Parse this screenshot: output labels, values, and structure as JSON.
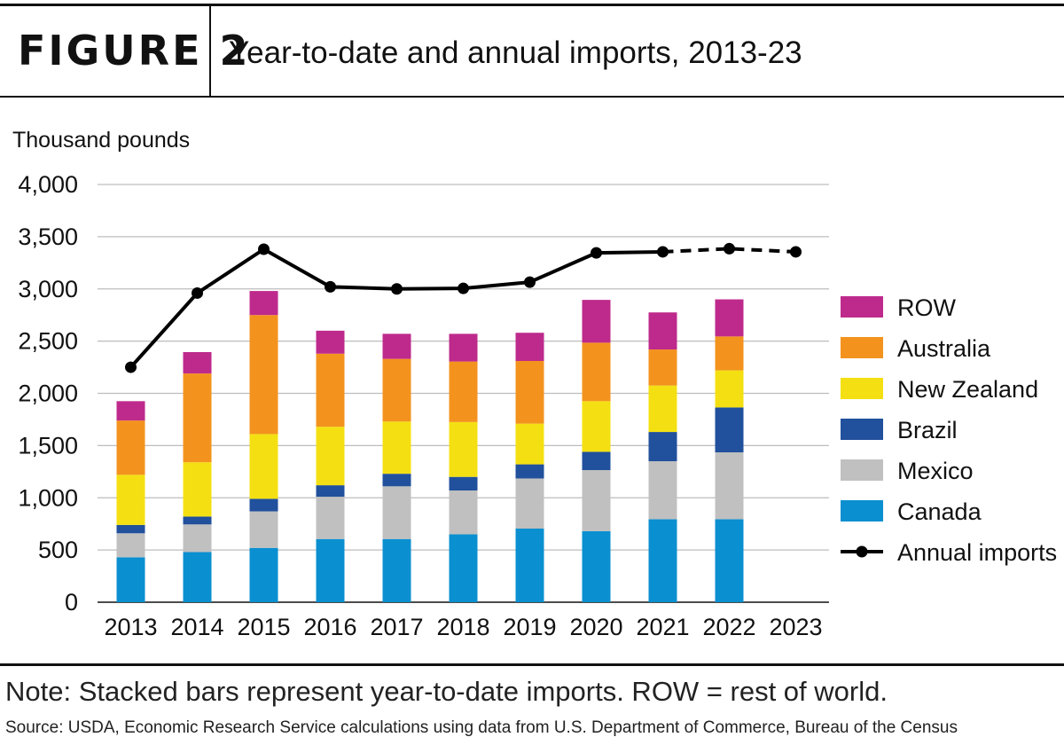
{
  "figure": {
    "label": "FIGURE 2",
    "title": "Year-to-date and annual imports, 2013-23"
  },
  "note": "Note: Stacked bars represent year-to-date imports. ROW = rest of world.",
  "source": "Source: USDA, Economic Research Service calculations using data from U.S. Department of Commerce, Bureau of the Census",
  "chart_data": {
    "type": "bar",
    "stacked": true,
    "ylabel": "Thousand pounds",
    "ylim": [
      0,
      4000
    ],
    "yticks": [
      0,
      500,
      1000,
      1500,
      2000,
      2500,
      3000,
      3500,
      4000
    ],
    "ytick_labels": [
      "0",
      "500",
      "1,000",
      "1,500",
      "2,000",
      "2,500",
      "3,000",
      "3,500",
      "4,000"
    ],
    "grid": true,
    "legend_position": "right",
    "categories": [
      "2013",
      "2014",
      "2015",
      "2016",
      "2017",
      "2018",
      "2019",
      "2020",
      "2021",
      "2022",
      "2023"
    ],
    "series": [
      {
        "name": "Canada",
        "color": "#0a8fd0",
        "values": [
          430,
          480,
          520,
          605,
          605,
          650,
          705,
          680,
          795,
          795,
          null
        ]
      },
      {
        "name": "Mexico",
        "color": "#c0c0c0",
        "values": [
          230,
          265,
          350,
          405,
          505,
          420,
          480,
          585,
          555,
          640,
          null
        ]
      },
      {
        "name": "Brazil",
        "color": "#21509c",
        "values": [
          80,
          75,
          120,
          110,
          120,
          130,
          135,
          175,
          280,
          430,
          null
        ]
      },
      {
        "name": "New Zealand",
        "color": "#f4e012",
        "values": [
          480,
          520,
          620,
          560,
          500,
          525,
          390,
          485,
          445,
          355,
          null
        ]
      },
      {
        "name": "Australia",
        "color": "#f3931e",
        "values": [
          520,
          850,
          1140,
          700,
          600,
          580,
          600,
          560,
          345,
          325,
          null
        ]
      },
      {
        "name": "ROW",
        "color": "#be2a8c",
        "values": [
          185,
          205,
          230,
          220,
          240,
          265,
          270,
          410,
          355,
          355,
          null
        ]
      }
    ],
    "line": {
      "name": "Annual imports",
      "color": "#000000",
      "values": [
        2250,
        2960,
        3380,
        3020,
        3000,
        3005,
        3065,
        3345,
        3355,
        3385,
        3355
      ],
      "dashed_from_index": 8
    }
  }
}
